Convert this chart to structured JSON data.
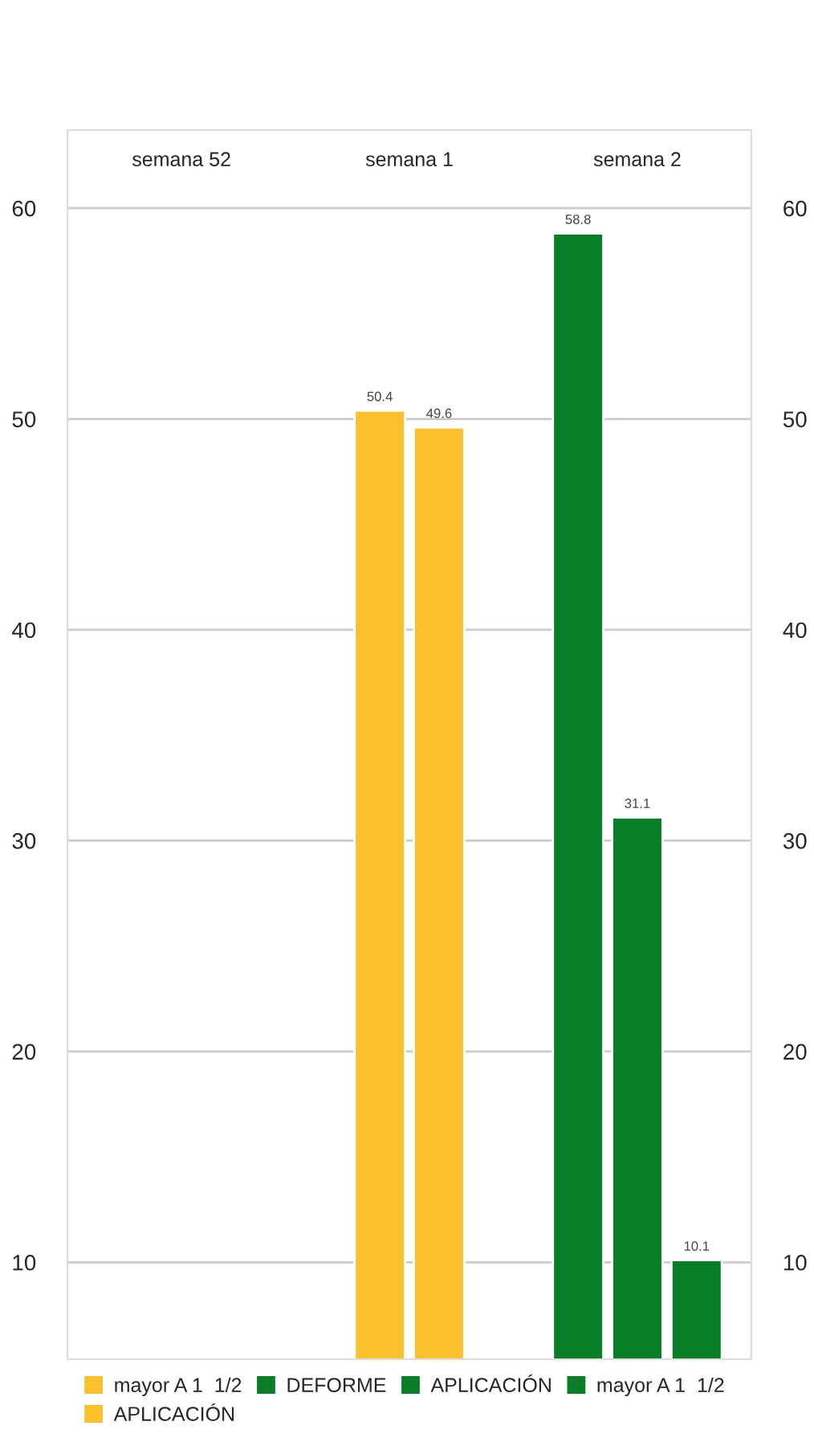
{
  "chart_data": {
    "type": "bar",
    "categories": [
      "semana 52",
      "semana 1",
      "semana 2"
    ],
    "series": [
      {
        "name": "mayor A 1  1/2",
        "color": "#fbc02d",
        "values": [
          null,
          50.4,
          null
        ]
      },
      {
        "name": "APLICACIÓN",
        "color": "#fbc02d",
        "values": [
          null,
          49.6,
          null
        ]
      },
      {
        "name": "DEFORME",
        "color": "#0a7d28",
        "values": [
          null,
          null,
          58.8
        ]
      },
      {
        "name": "APLICACIÓN",
        "color": "#0a7d28",
        "values": [
          null,
          null,
          31.1
        ]
      },
      {
        "name": "mayor A 1  1/2",
        "color": "#0a7d28",
        "values": [
          null,
          null,
          10.1
        ]
      }
    ],
    "ylim": [
      5.4,
      63.7
    ],
    "yticks": [
      10,
      20,
      30,
      40,
      50,
      60
    ],
    "y2lim": [
      5.4,
      63.7
    ],
    "y2ticks": [
      10,
      20,
      30,
      40,
      50,
      60
    ],
    "grid": "y",
    "data_labels": true,
    "legend": "bottom"
  }
}
